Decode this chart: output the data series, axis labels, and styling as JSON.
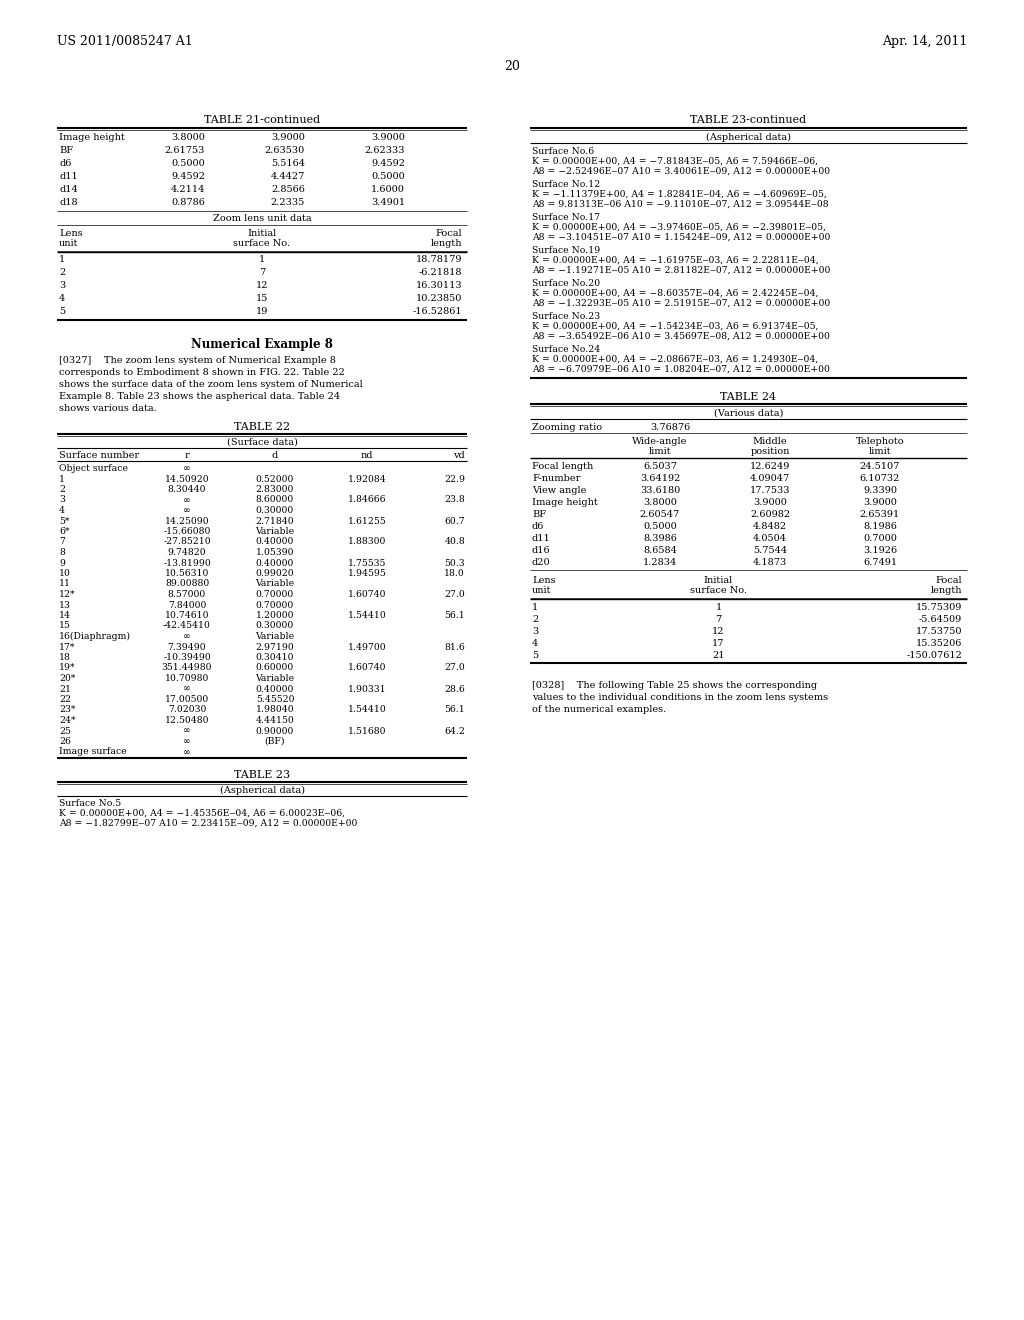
{
  "page_number": "20",
  "patent_number": "US 2011/0085247 A1",
  "patent_date": "Apr. 14, 2011",
  "table21_title": "TABLE 21-continued",
  "table21_varied_rows": [
    [
      "Image height",
      "3.8000",
      "3.9000",
      "3.9000"
    ],
    [
      "BF",
      "2.61753",
      "2.63530",
      "2.62333"
    ],
    [
      "d6",
      "0.5000",
      "5.5164",
      "9.4592"
    ],
    [
      "d11",
      "9.4592",
      "4.4427",
      "0.5000"
    ],
    [
      "d14",
      "4.2114",
      "2.8566",
      "1.6000"
    ],
    [
      "d18",
      "0.8786",
      "2.2335",
      "3.4901"
    ]
  ],
  "table21_zoom_header": "Zoom lens unit data",
  "table21_zoom_rows": [
    [
      "1",
      "1",
      "18.78179"
    ],
    [
      "2",
      "7",
      "-6.21818"
    ],
    [
      "3",
      "12",
      "16.30113"
    ],
    [
      "4",
      "15",
      "10.23850"
    ],
    [
      "5",
      "19",
      "-16.52861"
    ]
  ],
  "num_example_title": "Numerical Example 8",
  "para0327_lines": [
    "[0327]    The zoom lens system of Numerical Example 8",
    "corresponds to Embodiment 8 shown in FIG. 22. Table 22",
    "shows the surface data of the zoom lens system of Numerical",
    "Example 8. Table 23 shows the aspherical data. Table 24",
    "shows various data."
  ],
  "table22_title": "TABLE 22",
  "table22_subtitle": "(Surface data)",
  "table22_rows": [
    [
      "Object surface",
      "∞",
      "",
      "",
      ""
    ],
    [
      "1",
      "14.50920",
      "0.52000",
      "1.92084",
      "22.9"
    ],
    [
      "2",
      "8.30440",
      "2.83000",
      "",
      ""
    ],
    [
      "3",
      "∞",
      "8.60000",
      "1.84666",
      "23.8"
    ],
    [
      "4",
      "∞",
      "0.30000",
      "",
      ""
    ],
    [
      "5*",
      "14.25090",
      "2.71840",
      "1.61255",
      "60.7"
    ],
    [
      "6*",
      "-15.66080",
      "Variable",
      "",
      ""
    ],
    [
      "7",
      "-27.85210",
      "0.40000",
      "1.88300",
      "40.8"
    ],
    [
      "8",
      "9.74820",
      "1.05390",
      "",
      ""
    ],
    [
      "9",
      "-13.81990",
      "0.40000",
      "1.75535",
      "50.3"
    ],
    [
      "10",
      "10.56310",
      "0.99020",
      "1.94595",
      "18.0"
    ],
    [
      "11",
      "89.00880",
      "Variable",
      "",
      ""
    ],
    [
      "12*",
      "8.57000",
      "0.70000",
      "1.60740",
      "27.0"
    ],
    [
      "13",
      "7.84000",
      "0.70000",
      "",
      ""
    ],
    [
      "14",
      "10.74610",
      "1.20000",
      "1.54410",
      "56.1"
    ],
    [
      "15",
      "-42.45410",
      "0.30000",
      "",
      ""
    ],
    [
      "16(Diaphragm)",
      "∞",
      "Variable",
      "",
      ""
    ],
    [
      "17*",
      "7.39490",
      "2.97190",
      "1.49700",
      "81.6"
    ],
    [
      "18",
      "-10.39490",
      "0.30410",
      "",
      ""
    ],
    [
      "19*",
      "351.44980",
      "0.60000",
      "1.60740",
      "27.0"
    ],
    [
      "20*",
      "10.70980",
      "Variable",
      "",
      ""
    ],
    [
      "21",
      "∞",
      "0.40000",
      "1.90331",
      "28.6"
    ],
    [
      "22",
      "17.00500",
      "5.45520",
      "",
      ""
    ],
    [
      "23*",
      "7.02030",
      "1.98040",
      "1.54410",
      "56.1"
    ],
    [
      "24*",
      "12.50480",
      "4.44150",
      "",
      ""
    ],
    [
      "25",
      "∞",
      "0.90000",
      "1.51680",
      "64.2"
    ],
    [
      "26",
      "∞",
      "(BF)",
      "",
      ""
    ],
    [
      "Image surface",
      "∞",
      "",
      "",
      ""
    ]
  ],
  "table23_title": "TABLE 23",
  "table23_subtitle": "(Aspherical data)",
  "table23_surface5_lines": [
    "Surface No.5",
    "K = 0.00000E+00, A4 = −1.45356E‒04, A6 = 6.00023E‒06,",
    "A8 = −1.82799E‒07 A10 = 2.23415E‒09, A12 = 0.00000E+00"
  ],
  "table23c_title": "TABLE 23-continued",
  "table23c_subtitle": "(Aspherical data)",
  "table23c_blocks": [
    [
      "Surface No.6",
      "K = 0.00000E+00, A4 = −7.81843E‒05, A6 = 7.59466E‒06,",
      "A8 = −2.52496E‒07 A10 = 3.40061E‒09, A12 = 0.00000E+00"
    ],
    [
      "Surface No.12",
      "K = −1.11379E+00, A4 = 1.82841E‒04, A6 = −4.60969E‒05,",
      "A8 = 9.81313E‒06 A10 = −9.11010E‒07, A12 = 3.09544E‒08"
    ],
    [
      "Surface No.17",
      "K = 0.00000E+00, A4 = −3.97460E‒05, A6 = −2.39801E‒05,",
      "A8 = −3.10451E‒07 A10 = 1.15424E‒09, A12 = 0.00000E+00"
    ],
    [
      "Surface No.19",
      "K = 0.00000E+00, A4 = −1.61975E‒03, A6 = 2.22811E‒04,",
      "A8 = −1.19271E‒05 A10 = 2.81182E‒07, A12 = 0.00000E+00"
    ],
    [
      "Surface No.20",
      "K = 0.00000E+00, A4 = −8.60357E‒04, A6 = 2.42245E‒04,",
      "A8 = −1.32293E‒05 A10 = 2.51915E‒07, A12 = 0.00000E+00"
    ],
    [
      "Surface No.23",
      "K = 0.00000E+00, A4 = −1.54234E‒03, A6 = 6.91374E‒05,",
      "A8 = −3.65492E‒06 A10 = 3.45697E‒08, A12 = 0.00000E+00"
    ],
    [
      "Surface No.24",
      "K = 0.00000E+00, A4 = −2.08667E‒03, A6 = 1.24930E‒04,",
      "A8 = −6.70979E‒06 A10 = 1.08204E‒07, A12 = 0.00000E+00"
    ]
  ],
  "table24_title": "TABLE 24",
  "table24_subtitle": "(Various data)",
  "table24_zoom_ratio": "Zooming ratio",
  "table24_zoom_value": "3.76876",
  "table24_data_rows": [
    [
      "Focal length",
      "6.5037",
      "12.6249",
      "24.5107"
    ],
    [
      "F-number",
      "3.64192",
      "4.09047",
      "6.10732"
    ],
    [
      "View angle",
      "33.6180",
      "17.7533",
      "9.3390"
    ],
    [
      "Image height",
      "3.8000",
      "3.9000",
      "3.9000"
    ],
    [
      "BF",
      "2.60547",
      "2.60982",
      "2.65391"
    ],
    [
      "d6",
      "0.5000",
      "4.8482",
      "8.1986"
    ],
    [
      "d11",
      "8.3986",
      "4.0504",
      "0.7000"
    ],
    [
      "d16",
      "8.6584",
      "5.7544",
      "3.1926"
    ],
    [
      "d20",
      "1.2834",
      "4.1873",
      "6.7491"
    ]
  ],
  "table24_zoom_rows": [
    [
      "1",
      "1",
      "15.75309"
    ],
    [
      "2",
      "7",
      "-5.64509"
    ],
    [
      "3",
      "12",
      "17.53750"
    ],
    [
      "4",
      "17",
      "15.35206"
    ],
    [
      "5",
      "21",
      "-150.07612"
    ]
  ],
  "para0328_lines": [
    "[0328]    The following Table 25 shows the corresponding",
    "values to the individual conditions in the zoom lens systems",
    "of the numerical examples."
  ]
}
